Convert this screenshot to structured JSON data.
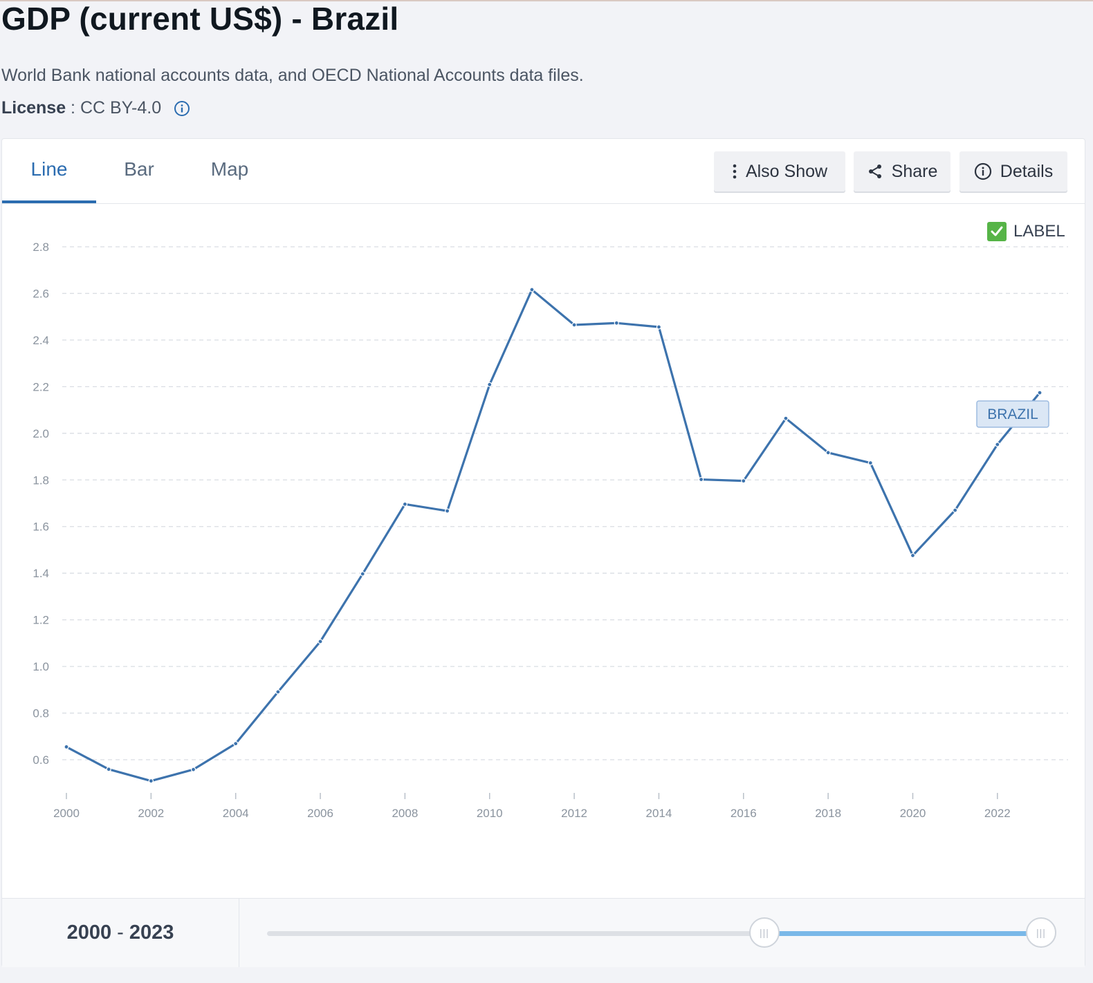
{
  "page": {
    "title": "GDP (current US$) - Brazil",
    "source": "World Bank national accounts data, and OECD National Accounts data files.",
    "license_label": "License",
    "license_sep": " : ",
    "license_value": "CC BY-4.0"
  },
  "tabs": [
    {
      "label": "Line",
      "active": true
    },
    {
      "label": "Bar",
      "active": false
    },
    {
      "label": "Map",
      "active": false
    }
  ],
  "toolbar": {
    "also_show": "Also Show",
    "share": "Share",
    "details": "Details"
  },
  "label_toggle": {
    "text": "LABEL",
    "checked": true
  },
  "range": {
    "start": "2000",
    "sep": "-",
    "end": "2023"
  },
  "colors": {
    "line": "#3d73ad",
    "accent": "#2b6cb0",
    "check": "#56b447"
  },
  "chart_data": {
    "type": "line",
    "x": [
      2000,
      2001,
      2002,
      2003,
      2004,
      2005,
      2006,
      2007,
      2008,
      2009,
      2010,
      2011,
      2012,
      2013,
      2014,
      2015,
      2016,
      2017,
      2018,
      2019,
      2020,
      2021,
      2022,
      2023
    ],
    "series": [
      {
        "name": "BRAZIL",
        "values": [
          0.655,
          0.559,
          0.509,
          0.558,
          0.669,
          0.891,
          1.107,
          1.397,
          1.696,
          1.667,
          2.209,
          2.616,
          2.465,
          2.473,
          2.456,
          1.802,
          1.796,
          2.064,
          1.917,
          1.873,
          1.476,
          1.67,
          1.952,
          2.174
        ]
      }
    ],
    "yticks": [
      "0.6",
      "0.8",
      "1.0",
      "1.2",
      "1.4",
      "1.6",
      "1.8",
      "2.0",
      "2.2",
      "2.4",
      "2.6",
      "2.8"
    ],
    "xticks": [
      "2000",
      "2002",
      "2004",
      "2006",
      "2008",
      "2010",
      "2012",
      "2014",
      "2016",
      "2018",
      "2020",
      "2022"
    ],
    "ylim": [
      0.45,
      2.8
    ],
    "xlim": [
      2000,
      2023
    ],
    "grid": true
  }
}
